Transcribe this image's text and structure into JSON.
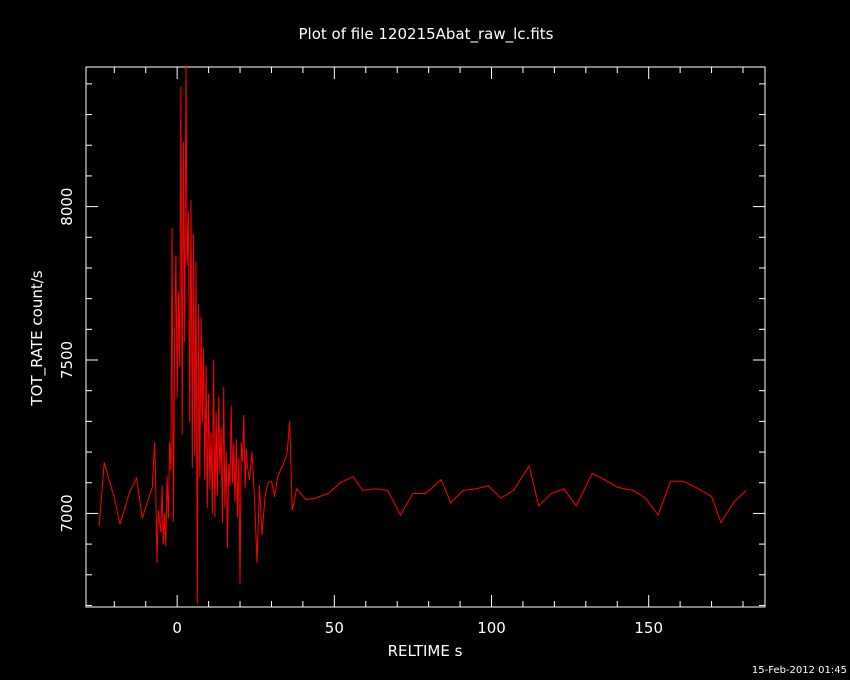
{
  "chart_data": {
    "type": "line",
    "title": "Plot of file 120215Abat_raw_lc.fits",
    "xlabel": "RELTIME  s",
    "ylabel": "TOT_RATE  count/s",
    "xlim": [
      -29,
      187
    ],
    "ylim": [
      6695,
      8455
    ],
    "xticks_major": [
      0,
      50,
      100,
      150
    ],
    "xticks_minor_step": 10,
    "yticks_major": [
      7000,
      7500,
      8000
    ],
    "yticks_minor_step": 100,
    "grid": false,
    "line_color": "#ff0000",
    "series": [
      {
        "x": [
          -24.8,
          -23.2,
          -20.1,
          -18.2,
          -15.1,
          -12.9,
          -11.1,
          -7.9,
          -7.2,
          -6.9,
          -6.4,
          -6.0,
          -5.2,
          -4.8,
          -4.4,
          -4.0,
          -3.6,
          -3.2,
          -2.8,
          -2.4,
          -2.0,
          -1.6,
          -1.2,
          -0.8,
          -0.4,
          0.0,
          0.4,
          0.8,
          1.2,
          1.6,
          2.0,
          2.4,
          2.8,
          3.2,
          3.6,
          4.0,
          4.4,
          4.8,
          5.2,
          5.6,
          6.0,
          6.4,
          6.8,
          7.2,
          7.6,
          8.0,
          8.4,
          8.8,
          9.2,
          9.6,
          10.0,
          10.4,
          10.8,
          11.2,
          11.6,
          12.0,
          12.4,
          12.8,
          13.2,
          13.6,
          14.0,
          14.4,
          14.8,
          15.2,
          15.6,
          16.0,
          16.4,
          16.8,
          17.2,
          17.6,
          18.0,
          18.4,
          18.8,
          19.2,
          19.6,
          20.0,
          20.4,
          20.8,
          21.2,
          21.6,
          22.0,
          22.4,
          23.0,
          23.8,
          24.6,
          25.4,
          26.2,
          27.0,
          28.0,
          29.0,
          30.0,
          31.0,
          32.0,
          33.0,
          34.0,
          35.0,
          35.8,
          36.6,
          38.0,
          41.0,
          44.0,
          48.0,
          52.0,
          56.0,
          59.0,
          63.0,
          67.0,
          71.0,
          75.0,
          79.0,
          84.0,
          87.0,
          91.0,
          95.0,
          99.0,
          103.0,
          107.0,
          112.0,
          115.0,
          119.0,
          123.0,
          127.0,
          132.0,
          136.0,
          140.0,
          145.0,
          149.0,
          153.0,
          157.0,
          161.0,
          165.0,
          170.0,
          173.0,
          177.0,
          181.0
        ],
        "y": [
          6960,
          7165,
          7055,
          6965,
          7070,
          7115,
          6985,
          7085,
          7230,
          7140,
          6840,
          7010,
          6940,
          7090,
          6900,
          7000,
          6895,
          7120,
          6985,
          7230,
          7140,
          7930,
          6975,
          7560,
          7840,
          7380,
          7720,
          7480,
          8390,
          7260,
          8210,
          7560,
          8460,
          7810,
          7980,
          7300,
          8020,
          7150,
          7910,
          7190,
          7820,
          6705,
          7680,
          7120,
          7640,
          7300,
          7540,
          7110,
          7480,
          7020,
          7390,
          7080,
          7260,
          7000,
          7500,
          6990,
          7330,
          7060,
          7380,
          7130,
          7280,
          6970,
          7410,
          7020,
          7200,
          6890,
          7160,
          7090,
          7350,
          7100,
          7225,
          7040,
          7240,
          6990,
          7180,
          6770,
          7230,
          7170,
          7320,
          7085,
          7210,
          7150,
          7110,
          7200,
          7050,
          6840,
          7090,
          6930,
          7060,
          7100,
          7105,
          7055,
          7120,
          7145,
          7165,
          7200,
          7300,
          7010,
          7080,
          7045,
          7050,
          7065,
          7100,
          7120,
          7075,
          7080,
          7075,
          6995,
          7065,
          7065,
          7110,
          7035,
          7075,
          7080,
          7090,
          7050,
          7075,
          7155,
          7025,
          7065,
          7080,
          7025,
          7130,
          7110,
          7085,
          7075,
          7050,
          6995,
          7105,
          7105,
          7085,
          7055,
          6970,
          7035,
          7075
        ]
      }
    ]
  },
  "footer": {
    "timestamp": "15-Feb-2012 01:45"
  }
}
